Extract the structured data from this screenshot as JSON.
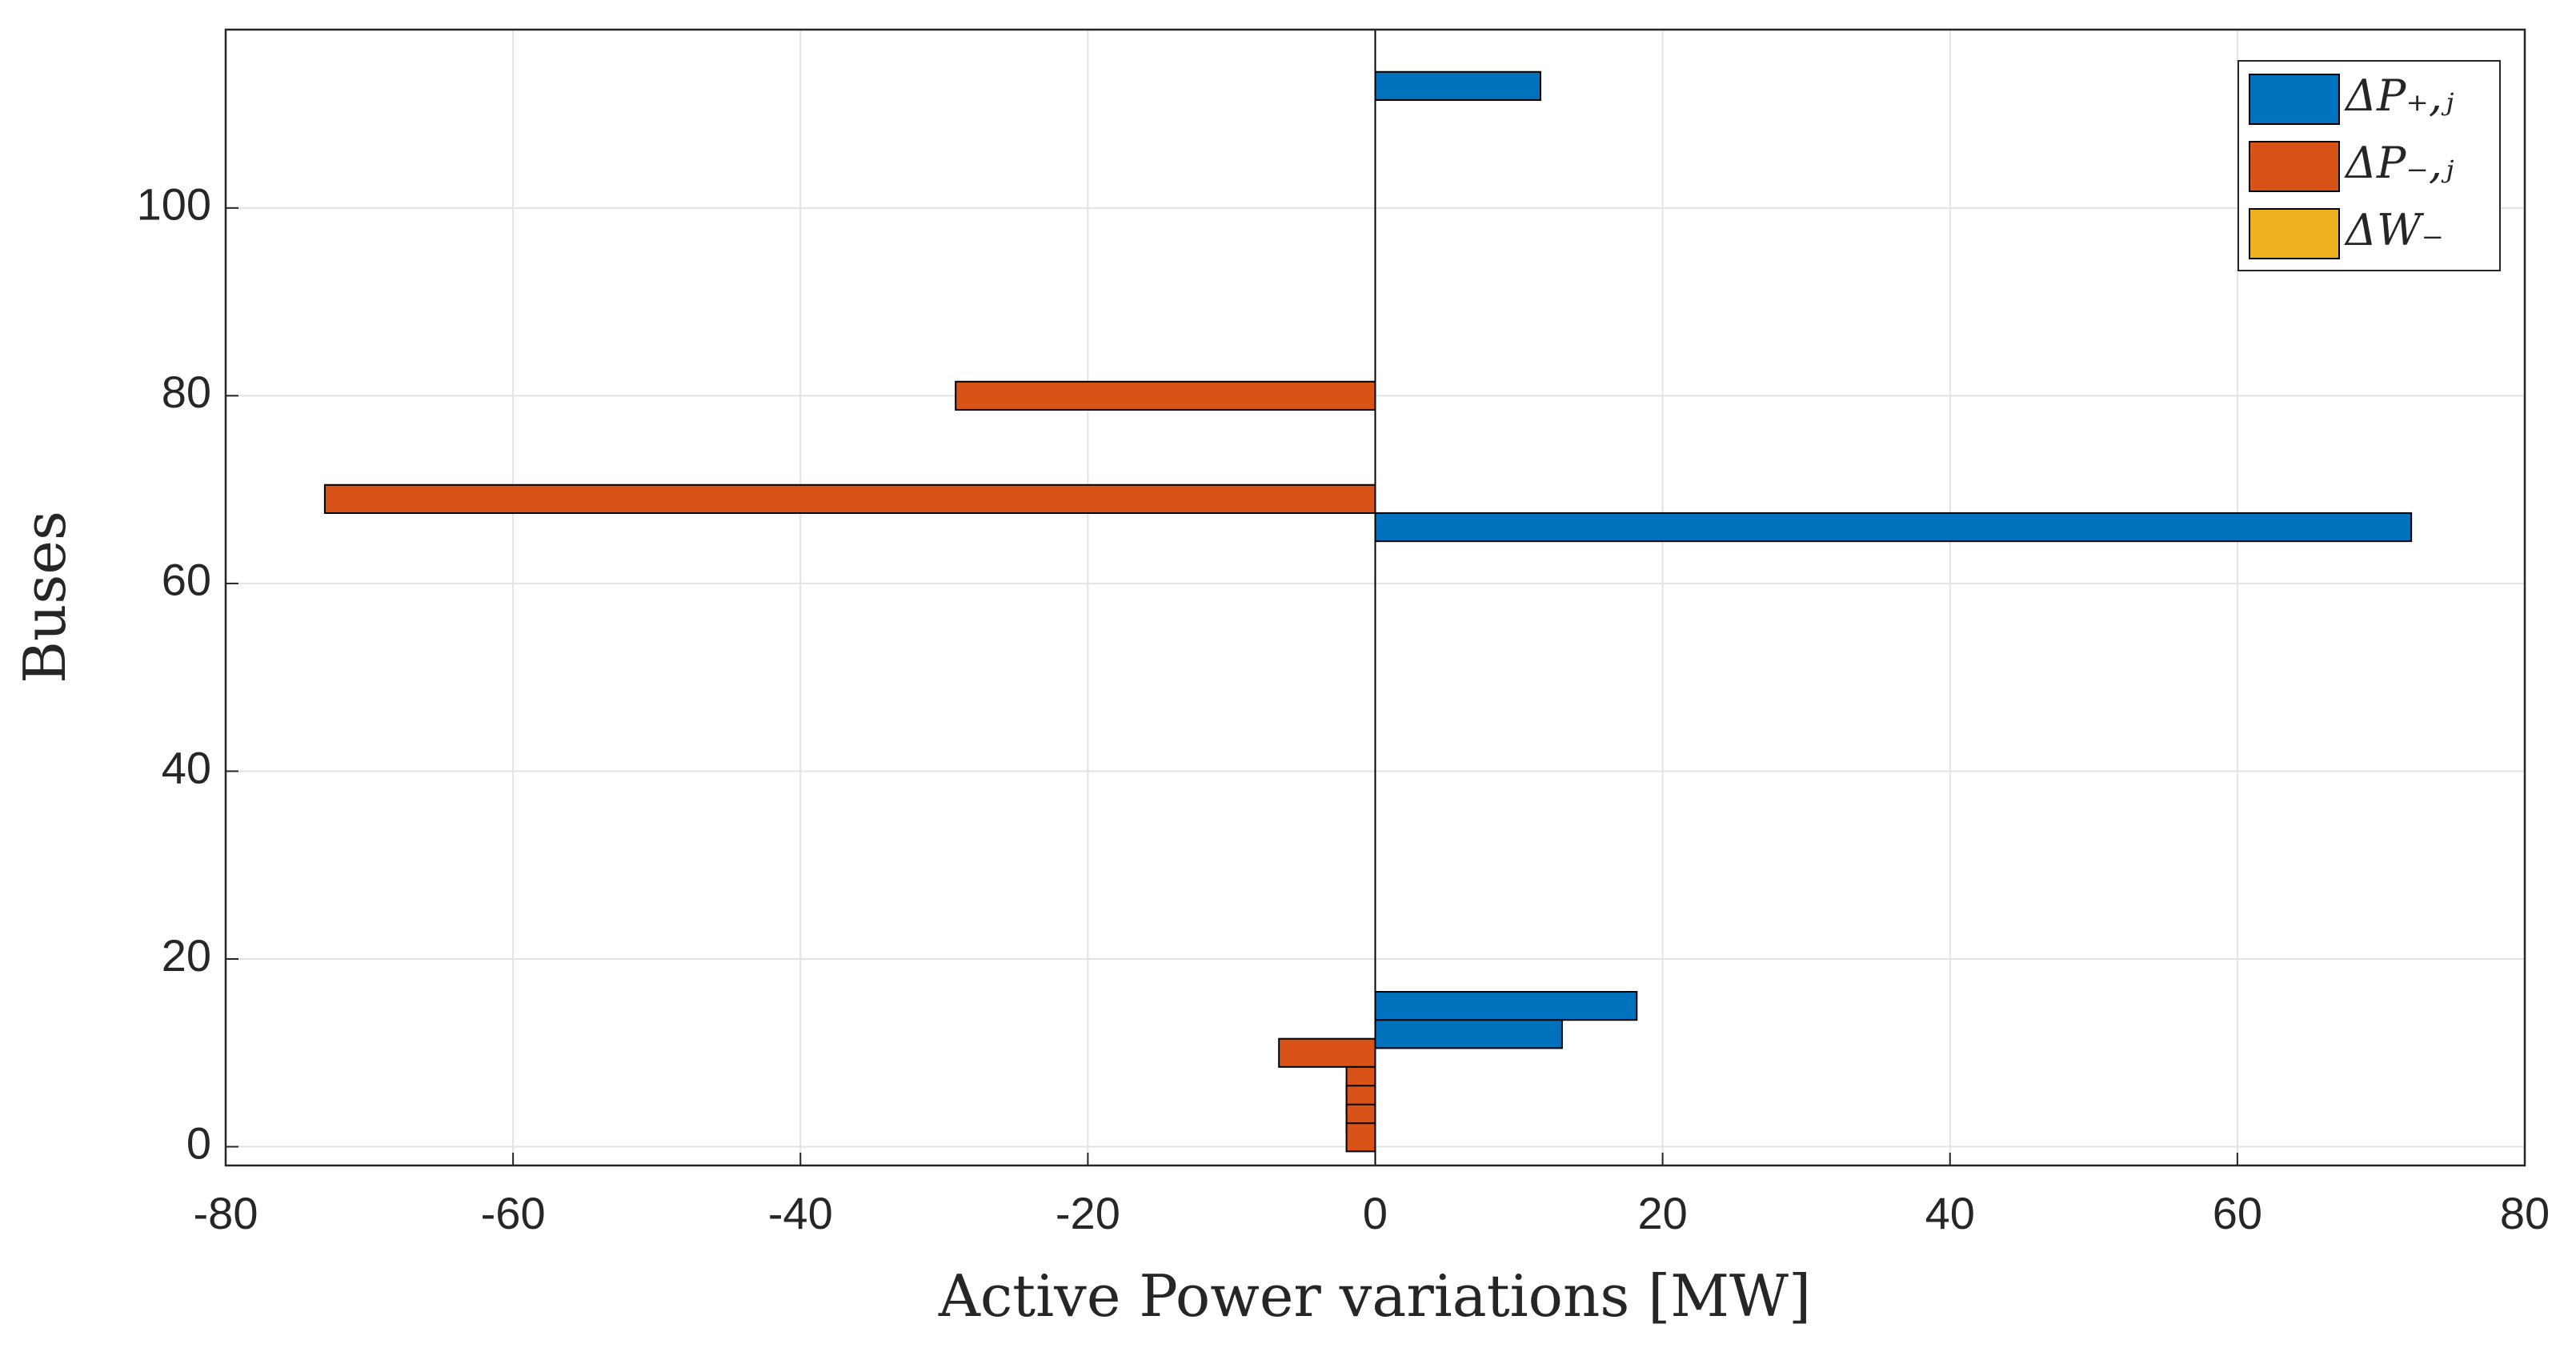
{
  "chart_data": {
    "type": "barh",
    "xlabel": "Active Power variations [MW]",
    "ylabel": "Buses",
    "xlim": [
      -80,
      80
    ],
    "xticks": [
      -80,
      -60,
      -40,
      -20,
      0,
      20,
      40,
      60,
      80
    ],
    "ylim": [
      -2,
      119
    ],
    "yticks": [
      0,
      20,
      40,
      60,
      80,
      100
    ],
    "grid": true,
    "legend": "top-right",
    "series": [
      {
        "name": "ΔP₊,ⱼ",
        "color": "#0072bd",
        "x": [
          113,
          66,
          15,
          12
        ],
        "values": [
          11.5,
          72.1,
          18.2,
          13
        ]
      },
      {
        "name": "ΔP₋,ⱼ",
        "color": "#d95319",
        "x": [
          80,
          69,
          10,
          7,
          5,
          3,
          1
        ],
        "values": [
          -29.2,
          -73.1,
          -6.7,
          -2,
          -2,
          -2,
          -2
        ]
      },
      {
        "name": "ΔW₋",
        "color": "#edb120",
        "x": [],
        "values": []
      }
    ]
  }
}
